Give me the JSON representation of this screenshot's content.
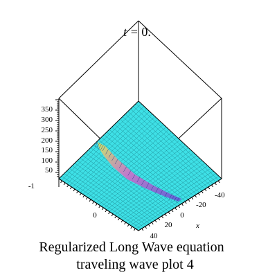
{
  "chart_data": {
    "type": "surface",
    "title_prefix": "t = ",
    "title_value": "0.",
    "caption_line1": "Regularized Long Wave equation",
    "caption_line2": "traveling wave plot 4",
    "xlabel": "x",
    "zlabel": "",
    "x_ticks": [
      "-40",
      "-20",
      "0",
      "20",
      "40"
    ],
    "y_ticks": [
      "0"
    ],
    "z_ticks": [
      "350",
      "300",
      "250",
      "200",
      "150",
      "100",
      "50",
      "-1"
    ],
    "surface_color": "#3ee0e6",
    "mesh_color": "#1f8f98",
    "wave_peak_color": "#c9e86a",
    "wave_mid_color": "#c07acb",
    "wave_tail_color": "#5a64d8"
  }
}
